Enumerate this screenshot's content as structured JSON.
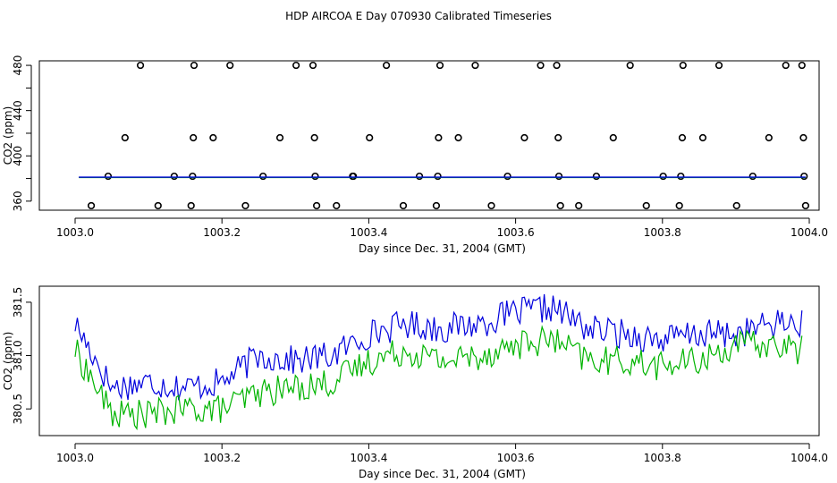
{
  "title": "HDP AIRCOA E  Day 070930  Calibrated Timeseries",
  "chart_data": [
    {
      "type": "scatter",
      "xlabel": "Day since Dec. 31, 2004 (GMT)",
      "ylabel": "CO2 (ppm)",
      "xlim": [
        1003.0,
        1004.0
      ],
      "ylim": [
        352,
        484
      ],
      "xticks": [
        "1003.0",
        "1003.2",
        "1003.4",
        "1003.6",
        "1003.8",
        "1004.0"
      ],
      "yticks": [
        "360",
        "400",
        "440",
        "480"
      ],
      "yticks_minor": [
        380,
        420,
        460
      ],
      "grid": false,
      "series": [
        {
          "color": "#000000",
          "marker": "open-circle",
          "points": [
            [
              1003.022,
              356
            ],
            [
              1003.045,
              382
            ],
            [
              1003.068,
              416
            ],
            [
              1003.089,
              480
            ],
            [
              1003.113,
              356
            ],
            [
              1003.135,
              382
            ],
            [
              1003.158,
              356
            ],
            [
              1003.16,
              382
            ],
            [
              1003.161,
              416
            ],
            [
              1003.162,
              480
            ],
            [
              1003.188,
              416
            ],
            [
              1003.211,
              480
            ],
            [
              1003.232,
              356
            ],
            [
              1003.256,
              382
            ],
            [
              1003.279,
              416
            ],
            [
              1003.301,
              480
            ],
            [
              1003.324,
              480
            ],
            [
              1003.326,
              416
            ],
            [
              1003.327,
              382
            ],
            [
              1003.329,
              356
            ],
            [
              1003.356,
              356
            ],
            [
              1003.378,
              382
            ],
            [
              1003.379,
              382
            ],
            [
              1003.401,
              416
            ],
            [
              1003.424,
              480
            ],
            [
              1003.447,
              356
            ],
            [
              1003.469,
              382
            ],
            [
              1003.492,
              356
            ],
            [
              1003.494,
              382
            ],
            [
              1003.495,
              416
            ],
            [
              1003.497,
              480
            ],
            [
              1003.522,
              416
            ],
            [
              1003.545,
              480
            ],
            [
              1003.567,
              356
            ],
            [
              1003.589,
              382
            ],
            [
              1003.612,
              416
            ],
            [
              1003.634,
              480
            ],
            [
              1003.656,
              480
            ],
            [
              1003.658,
              416
            ],
            [
              1003.659,
              382
            ],
            [
              1003.661,
              356
            ],
            [
              1003.686,
              356
            ],
            [
              1003.71,
              382
            ],
            [
              1003.733,
              416
            ],
            [
              1003.756,
              480
            ],
            [
              1003.778,
              356
            ],
            [
              1003.801,
              382
            ],
            [
              1003.823,
              356
            ],
            [
              1003.825,
              382
            ],
            [
              1003.827,
              416
            ],
            [
              1003.828,
              480
            ],
            [
              1003.855,
              416
            ],
            [
              1003.877,
              480
            ],
            [
              1003.901,
              356
            ],
            [
              1003.923,
              382
            ],
            [
              1003.945,
              416
            ],
            [
              1003.968,
              480
            ],
            [
              1003.99,
              480
            ],
            [
              1003.992,
              416
            ],
            [
              1003.993,
              382
            ],
            [
              1003.995,
              356
            ]
          ]
        },
        {
          "color": "#00b400",
          "marker": "line",
          "points": [
            [
              1003.005,
              380.9
            ],
            [
              1003.995,
              380.9
            ]
          ]
        },
        {
          "color": "#0000dd",
          "marker": "line",
          "points": [
            [
              1003.005,
              381.2
            ],
            [
              1003.995,
              381.2
            ]
          ]
        }
      ]
    },
    {
      "type": "line",
      "xlabel": "Day since Dec. 31, 2004 (GMT)",
      "ylabel": "CO2 (ppm)",
      "xlim": [
        1003.0,
        1004.0
      ],
      "ylim": [
        380.25,
        381.65
      ],
      "xticks": [
        "1003.0",
        "1003.2",
        "1003.4",
        "1003.6",
        "1003.8",
        "1004.0"
      ],
      "yticks": [
        "380.5",
        "381.0",
        "381.5"
      ],
      "grid": false,
      "series": [
        {
          "color": "#0000dd",
          "x": [
            1003.0,
            1003.05,
            1003.1,
            1003.15,
            1003.2,
            1003.25,
            1003.3,
            1003.35,
            1003.4,
            1003.45,
            1003.5,
            1003.55,
            1003.6,
            1003.65,
            1003.7,
            1003.75,
            1003.8,
            1003.85,
            1003.9,
            1003.95,
            1003.99
          ],
          "values": [
            381.3,
            380.7,
            380.75,
            380.7,
            380.75,
            381.0,
            380.95,
            381.0,
            381.2,
            381.3,
            381.25,
            381.3,
            381.4,
            381.45,
            381.25,
            381.2,
            381.15,
            381.2,
            381.2,
            381.3,
            381.3
          ]
        },
        {
          "color": "#00b400",
          "x": [
            1003.0,
            1003.05,
            1003.1,
            1003.15,
            1003.2,
            1003.25,
            1003.3,
            1003.35,
            1003.4,
            1003.45,
            1003.5,
            1003.55,
            1003.6,
            1003.65,
            1003.7,
            1003.75,
            1003.8,
            1003.85,
            1003.9,
            1003.95,
            1003.99
          ],
          "values": [
            381.05,
            380.45,
            380.45,
            380.5,
            380.5,
            380.65,
            380.7,
            380.75,
            380.95,
            381.05,
            380.95,
            381.0,
            381.1,
            381.15,
            380.95,
            380.95,
            380.9,
            380.95,
            381.1,
            381.1,
            381.05
          ]
        }
      ]
    }
  ]
}
